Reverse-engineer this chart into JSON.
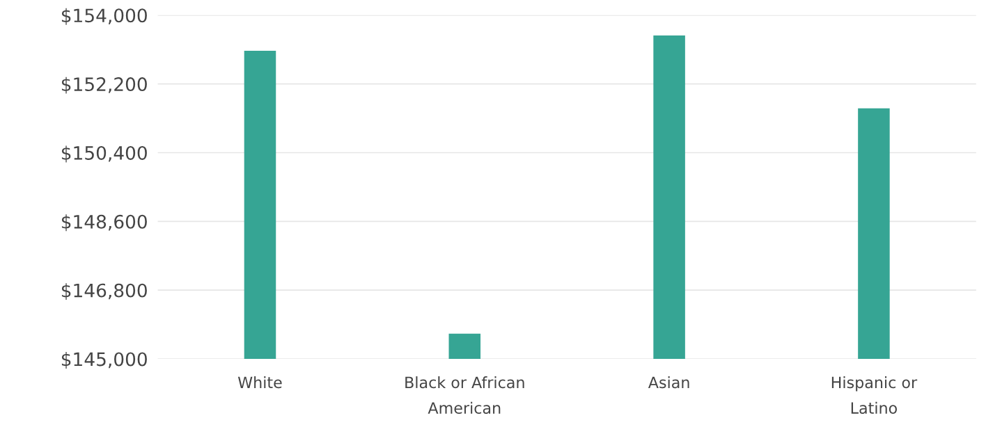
{
  "chart_data": {
    "type": "bar",
    "categories": [
      "White",
      "Black or African American",
      "Asian",
      "Hispanic or Latino"
    ],
    "values": [
      153070,
      145660,
      153470,
      151560
    ],
    "color": "#36a594",
    "ylim": [
      145000,
      154000
    ],
    "yticks": [
      {
        "value": 145000,
        "label": "$145,000"
      },
      {
        "value": 146800,
        "label": "$146,800"
      },
      {
        "value": 148600,
        "label": "$148,600"
      },
      {
        "value": 150400,
        "label": "$150,400"
      },
      {
        "value": 152200,
        "label": "$152,200"
      },
      {
        "value": 154000,
        "label": "$154,000"
      }
    ],
    "grid": "y",
    "legend": false
  }
}
